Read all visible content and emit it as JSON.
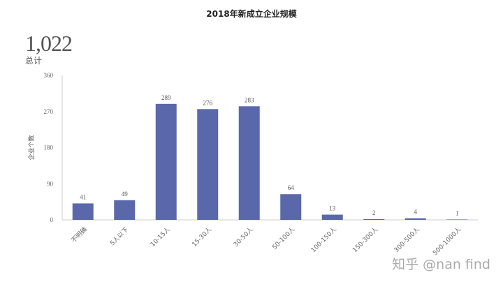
{
  "chart_data": {
    "type": "bar",
    "title": "2018年新成立企业规模",
    "summary": {
      "value": "1,022",
      "label": "总计"
    },
    "xlabel": "",
    "ylabel": "企业个数",
    "categories": [
      "不明确",
      "5人以下",
      "10-15人",
      "15-30人",
      "30-50人",
      "50-100人",
      "100-150人",
      "150-300人",
      "300-500人",
      "500-1000人"
    ],
    "values": [
      41,
      49,
      289,
      276,
      283,
      64,
      13,
      2,
      4,
      1
    ],
    "ylim": [
      0,
      360
    ],
    "yticks": [
      0,
      90,
      180,
      270,
      360
    ],
    "grid": false,
    "bar_color": "#5a68ab"
  },
  "watermark": "知乎 @nan find"
}
